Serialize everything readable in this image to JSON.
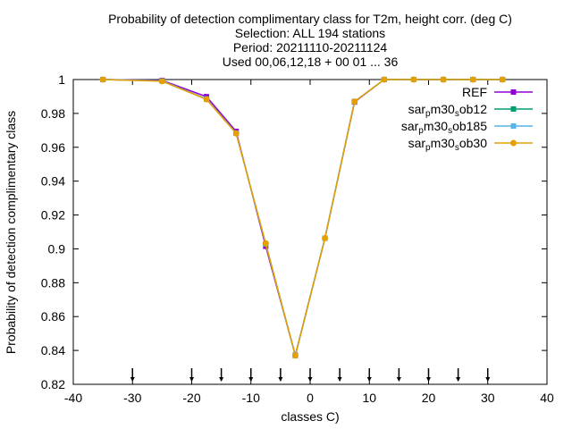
{
  "chart_data": {
    "type": "line",
    "title_lines": [
      "Probability of detection complimentary class  for T2m, height corr. (deg C)",
      "Selection: ALL    194 stations",
      "Period: 20211110-20211124",
      "Used 00,06,12,18 + 00 01 ... 36"
    ],
    "xlabel": "classes C)",
    "ylabel": "Probability of detection complimentary class",
    "xlim": [
      -40,
      40
    ],
    "ylim": [
      0.82,
      1.0
    ],
    "xticks": [
      -40,
      -30,
      -20,
      -10,
      0,
      10,
      20,
      30,
      40
    ],
    "yticks": [
      0.82,
      0.84,
      0.86,
      0.88,
      0.9,
      0.92,
      0.94,
      0.96,
      0.98,
      1.0
    ],
    "ytick_labels": [
      "0.82",
      "0.84",
      "0.86",
      "0.88",
      "0.9",
      "0.92",
      "0.94",
      "0.96",
      "0.98",
      "1"
    ],
    "class_markers_x": [
      -30,
      -20,
      -15,
      -10,
      -5,
      0,
      5,
      10,
      15,
      20,
      25,
      30
    ],
    "legend_position": "top-right",
    "series": [
      {
        "name": "REF",
        "name_parts": [
          [
            "REF",
            "n"
          ]
        ],
        "color": "#9400d3",
        "marker": "square",
        "x": [
          -35,
          -25,
          -17.5,
          -12.5,
          -7.5,
          -2.5,
          2.5,
          7.5,
          12.5,
          17.5,
          22.5,
          27.5,
          32.5
        ],
        "y": [
          1.0,
          0.9995,
          0.9899,
          0.9694,
          0.9015,
          0.8372,
          0.9063,
          0.9867,
          1.0,
          1.0,
          1.0,
          1.0,
          1.0
        ]
      },
      {
        "name": "sar_p m30_s ob12",
        "name_parts": [
          [
            "sar",
            "n"
          ],
          [
            "p",
            "sub"
          ],
          [
            "m30",
            "n"
          ],
          [
            "s",
            "sub"
          ],
          [
            "ob12",
            "n"
          ]
        ],
        "color": "#009e73",
        "marker": "square",
        "x": [
          -35,
          -25,
          -17.5,
          -12.5,
          -7.5,
          -2.5,
          2.5,
          7.5,
          12.5,
          17.5,
          22.5,
          27.5,
          32.5
        ],
        "y": [
          1.0,
          0.9992,
          0.9885,
          0.9684,
          0.9028,
          0.837,
          0.9063,
          0.987,
          1.0,
          1.0,
          1.0,
          1.0,
          1.0
        ]
      },
      {
        "name": "sar_p m30_s ob185",
        "name_parts": [
          [
            "sar",
            "n"
          ],
          [
            "p",
            "sub"
          ],
          [
            "m30",
            "n"
          ],
          [
            "s",
            "sub"
          ],
          [
            "ob185",
            "n"
          ]
        ],
        "color": "#56b4e9",
        "marker": "square",
        "x": [
          -35,
          -25,
          -17.5,
          -12.5,
          -7.5,
          -2.5,
          2.5,
          7.5,
          12.5,
          17.5,
          22.5,
          27.5,
          32.5
        ],
        "y": [
          1.0,
          0.9992,
          0.9885,
          0.9684,
          0.903,
          0.837,
          0.9063,
          0.987,
          1.0,
          1.0,
          1.0,
          1.0,
          1.0
        ]
      },
      {
        "name": "sar_p m30_s ob30",
        "name_parts": [
          [
            "sar",
            "n"
          ],
          [
            "p",
            "sub"
          ],
          [
            "m30",
            "n"
          ],
          [
            "s",
            "sub"
          ],
          [
            "ob30",
            "n"
          ]
        ],
        "color": "#e69f00",
        "marker": "circle",
        "x": [
          -35,
          -25,
          -17.5,
          -12.5,
          -7.5,
          -2.5,
          2.5,
          7.5,
          12.5,
          17.5,
          22.5,
          27.5,
          32.5
        ],
        "y": [
          1.0,
          0.999,
          0.9883,
          0.9682,
          0.9032,
          0.837,
          0.9063,
          0.987,
          1.0,
          1.0,
          1.0,
          1.0,
          1.0
        ]
      }
    ]
  }
}
